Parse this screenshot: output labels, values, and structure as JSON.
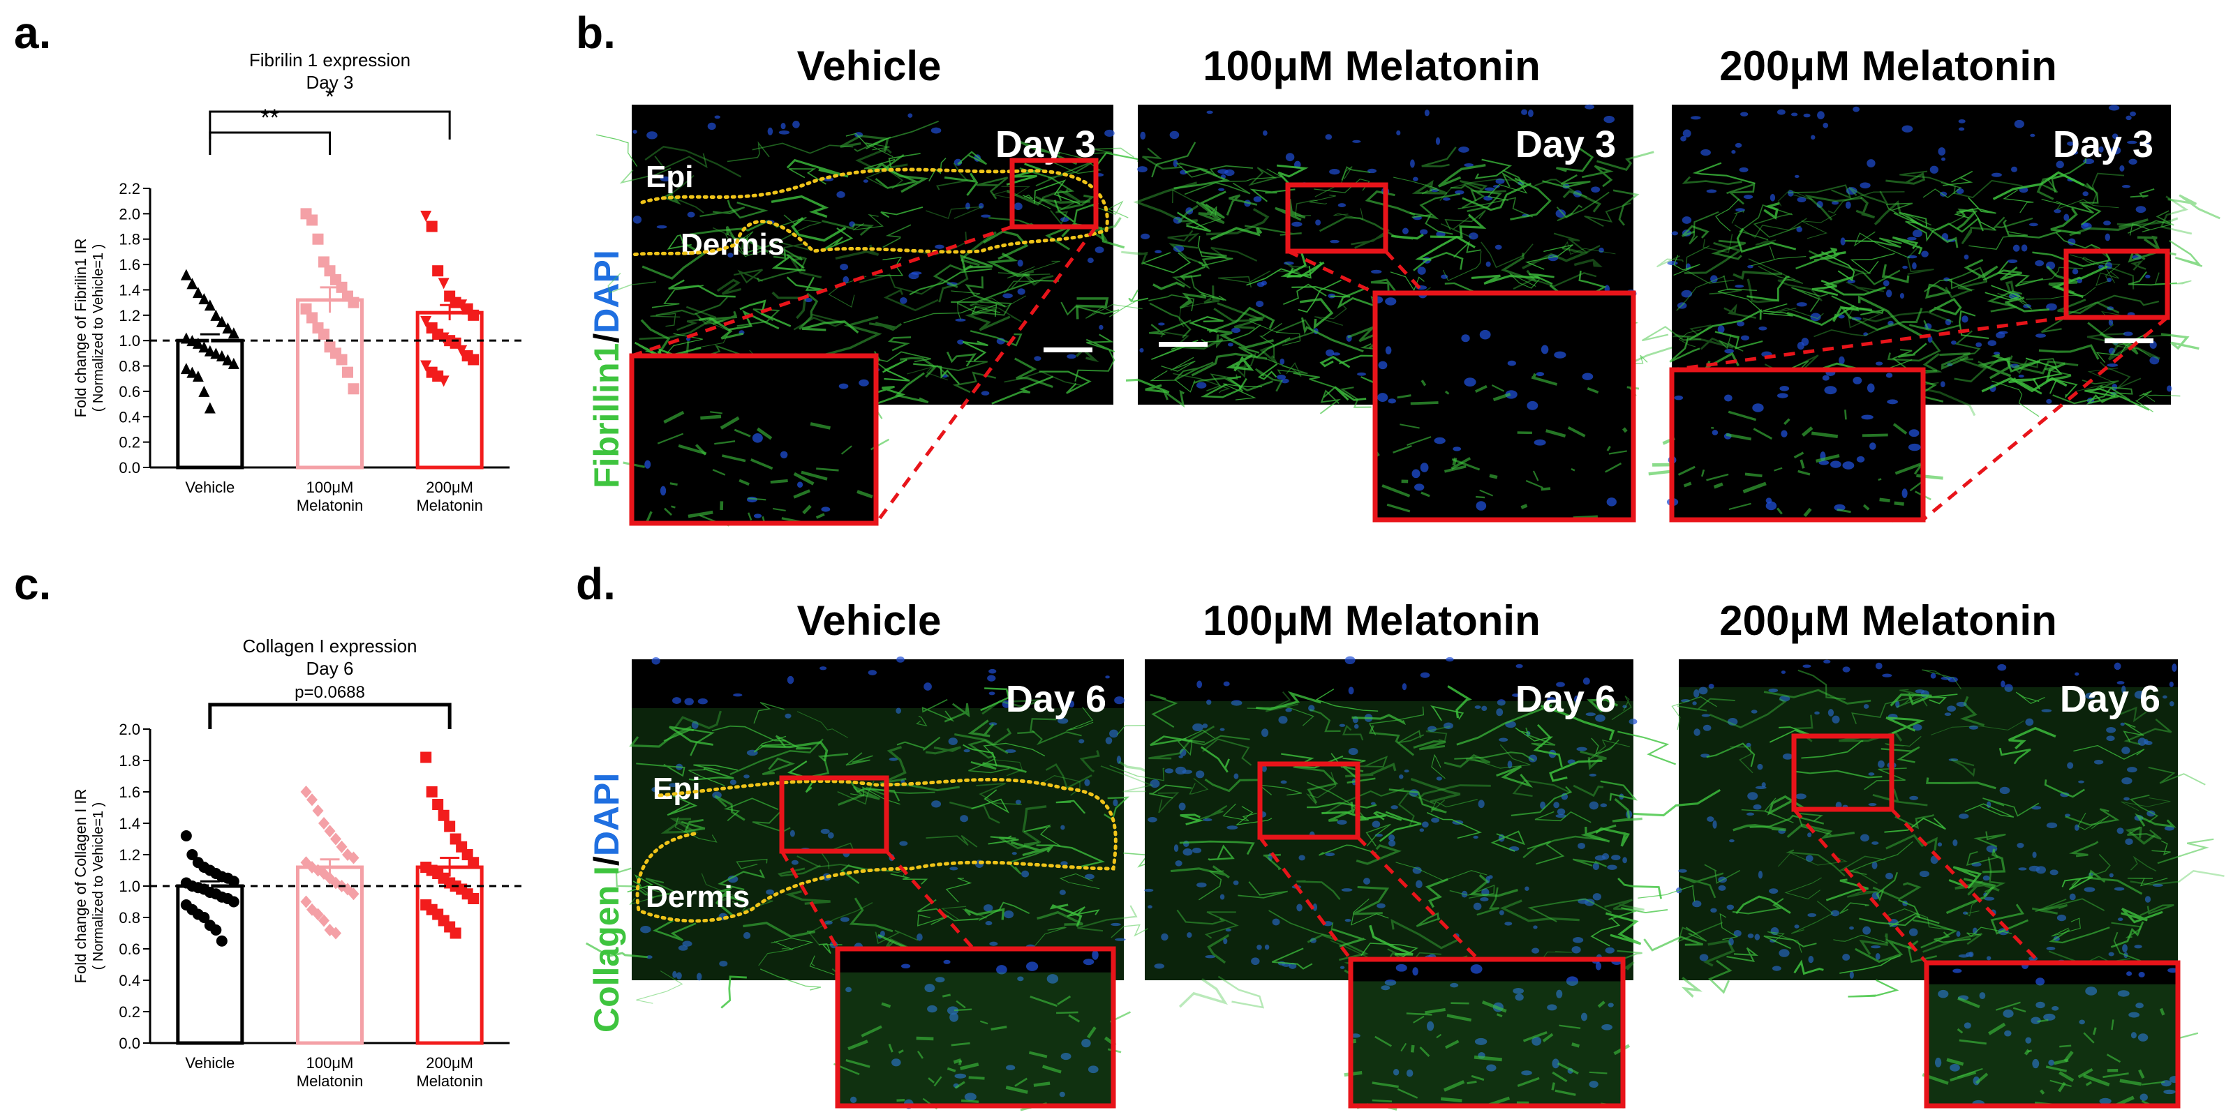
{
  "panels": {
    "a": "a.",
    "b": "b.",
    "c": "c.",
    "d": "d."
  },
  "colors": {
    "vehicle": "#000000",
    "mel100": "#f4a0a6",
    "mel200": "#f21c1c",
    "fluor_green": "#3ec43e",
    "dapi_blue": "#1f4fd6",
    "inset_red": "#e8141a"
  },
  "chart_data": [
    {
      "type": "bar",
      "title": "Fibrilin 1 expression",
      "subtitle": "Day 3",
      "categories": [
        "Vehicle",
        "100μM\nMelatonin",
        "200μM\nMelatonin"
      ],
      "category_lines": [
        [
          "Vehicle"
        ],
        [
          "100μM",
          "Melatonin"
        ],
        [
          "200μM",
          "Melatonin"
        ]
      ],
      "ylabel": "Fold change of Fibrilin1 IR",
      "ylabel2": "( Normalized to Vehicle=1 )",
      "ylim": [
        0,
        2.2
      ],
      "yticks": [
        "0.0",
        "0.2",
        "0.4",
        "0.6",
        "0.8",
        "1.0",
        "1.2",
        "1.4",
        "1.6",
        "1.8",
        "2.0",
        "2.2"
      ],
      "reference_line": 1.0,
      "values": [
        1.0,
        1.32,
        1.22
      ],
      "errors": [
        0.05,
        0.1,
        0.06
      ],
      "points": [
        [
          1.52,
          1.45,
          1.38,
          1.33,
          1.28,
          1.2,
          1.15,
          1.1,
          1.06,
          1.02,
          1.0,
          0.98,
          0.95,
          0.92,
          0.9,
          0.88,
          0.85,
          0.82,
          0.78,
          0.75,
          0.72,
          0.6,
          0.47
        ],
        [
          2.0,
          1.95,
          1.8,
          1.62,
          1.55,
          1.48,
          1.42,
          1.35,
          1.3,
          1.25,
          1.18,
          1.1,
          1.05,
          0.95,
          0.9,
          0.85,
          0.75,
          0.62
        ],
        [
          1.98,
          1.9,
          1.55,
          1.45,
          1.35,
          1.3,
          1.28,
          1.25,
          1.2,
          1.15,
          1.1,
          1.05,
          1.02,
          1.0,
          0.98,
          0.92,
          0.88,
          0.85,
          0.8,
          0.75,
          0.72,
          0.68
        ]
      ],
      "markers": [
        "triangle",
        "square",
        "square-triangle"
      ],
      "sig": [
        {
          "label": "**",
          "from": 0,
          "to": 1
        },
        {
          "label": "*",
          "from": 0,
          "to": 2
        }
      ]
    },
    {
      "type": "bar",
      "title": "Collagen I expression",
      "subtitle": "Day 6",
      "categories": [
        "Vehicle",
        "100μM\nMelatonin",
        "200μM\nMelatonin"
      ],
      "category_lines": [
        [
          "Vehicle"
        ],
        [
          "100μM",
          "Melatonin"
        ],
        [
          "200μM",
          "Melatonin"
        ]
      ],
      "ylabel": "Fold change of Collagen I IR",
      "ylabel2": "( Normalized to Vehicle=1 )",
      "ylim": [
        0,
        2.0
      ],
      "yticks": [
        "0.0",
        "0.2",
        "0.4",
        "0.6",
        "0.8",
        "1.0",
        "1.2",
        "1.4",
        "1.6",
        "1.8",
        "2.0"
      ],
      "reference_line": 1.0,
      "values": [
        1.0,
        1.12,
        1.12
      ],
      "errors": [
        0.03,
        0.05,
        0.06
      ],
      "points": [
        [
          1.32,
          1.2,
          1.15,
          1.12,
          1.1,
          1.08,
          1.06,
          1.05,
          1.03,
          1.02,
          1.0,
          0.99,
          0.98,
          0.96,
          0.95,
          0.93,
          0.92,
          0.9,
          0.88,
          0.85,
          0.82,
          0.8,
          0.75,
          0.72,
          0.65
        ],
        [
          1.6,
          1.55,
          1.48,
          1.4,
          1.35,
          1.3,
          1.25,
          1.2,
          1.18,
          1.15,
          1.12,
          1.1,
          1.08,
          1.05,
          1.02,
          1.0,
          0.98,
          0.95,
          0.9,
          0.85,
          0.82,
          0.78,
          0.72,
          0.7
        ],
        [
          1.82,
          1.6,
          1.52,
          1.45,
          1.38,
          1.3,
          1.25,
          1.2,
          1.15,
          1.12,
          1.1,
          1.08,
          1.05,
          1.02,
          1.0,
          0.98,
          0.95,
          0.92,
          0.88,
          0.85,
          0.82,
          0.78,
          0.74,
          0.7
        ]
      ],
      "markers": [
        "circle",
        "diamond",
        "square"
      ],
      "sig": [
        {
          "label": "p=0.0688",
          "from": 0,
          "to": 2
        }
      ]
    }
  ],
  "micrographs": {
    "row_b": {
      "stain_label_1": "Fibrillin1",
      "stain_label_sep": "/",
      "stain_label_2": "DAPI",
      "columns": [
        "Vehicle",
        "100μM Melatonin",
        "200μM Melatonin"
      ],
      "day": "Day 3",
      "epi_label": "Epi",
      "dermis_label": "Dermis"
    },
    "row_d": {
      "stain_label_1": "Collagen I",
      "stain_label_sep": "/",
      "stain_label_2": "DAPI",
      "columns": [
        "Vehicle",
        "100μM Melatonin",
        "200μM Melatonin"
      ],
      "day": "Day 6",
      "epi_label": "Epi",
      "dermis_label": "Dermis"
    }
  }
}
